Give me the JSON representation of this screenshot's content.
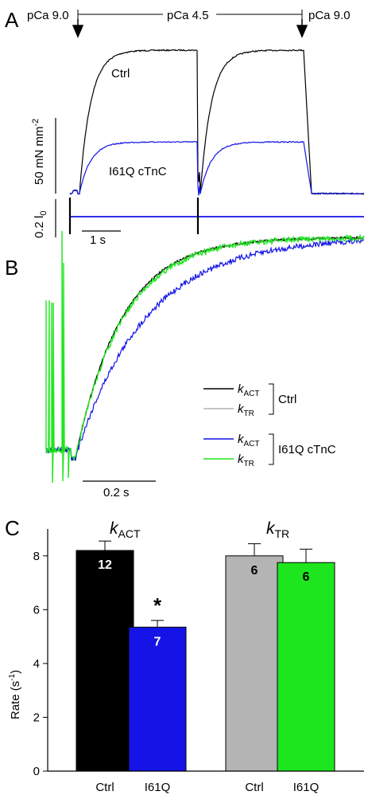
{
  "colors": {
    "ctrl_act": "#000000",
    "ctrl_tr": "#b4b4b4",
    "mut_act": "#1414e6",
    "mut_tr": "#1ee61e"
  },
  "panels": {
    "a": {
      "letter": "A",
      "start_label": "pCa 9.0",
      "mid_label": "pCa 4.5",
      "end_label": "pCa 9.0",
      "ctrl_label": "Ctrl",
      "mutant_label": "I61Q cTnC",
      "force_scale_label": "50 mN mm",
      "force_scale_exp": "-2",
      "length_scale_label": "0.2 l",
      "length_scale_sub": "0",
      "time_scale_label": "1 s"
    },
    "b": {
      "letter": "B",
      "time_scale_label": "0.2 s",
      "legend_group_ctrl": "Ctrl",
      "legend_group_mut": "I61Q cTnC"
    },
    "c": {
      "letter": "C"
    }
  },
  "chart_data": [
    {
      "type": "line",
      "panel": "A",
      "series": [
        {
          "name": "Ctrl",
          "level_max": 1.0,
          "steady_mutant_over_ctrl": 0.36
        },
        {
          "name": "I61Q cTnC",
          "level_max": 0.36
        }
      ],
      "annotations": [
        "pCa 9.0",
        "pCa 4.5",
        "pCa 9.0"
      ]
    },
    {
      "type": "line",
      "panel": "B",
      "legend": [
        {
          "main": "k",
          "sub": "ACT",
          "group": "Ctrl"
        },
        {
          "main": "k",
          "sub": "TR",
          "group": "Ctrl"
        },
        {
          "main": "k",
          "sub": "ACT",
          "group": "I61Q cTnC"
        },
        {
          "main": "k",
          "sub": "TR",
          "group": "I61Q cTnC"
        }
      ],
      "rate_constants_relative": [
        1.0,
        1.0,
        0.66,
        0.97
      ]
    },
    {
      "type": "bar",
      "panel": "C",
      "ylabel": "Rate (s",
      "ylabel_exp": "-1",
      "ylabel_close": ")",
      "ylim": [
        0,
        9
      ],
      "yticks": [
        0,
        2,
        4,
        6,
        8
      ],
      "groups": [
        {
          "title_main": "k",
          "title_sub": "ACT",
          "bars": [
            {
              "category": "Ctrl",
              "value": 8.2,
              "error": 0.35,
              "n": "12",
              "significant": false
            },
            {
              "category": "I61Q",
              "value": 5.35,
              "error": 0.25,
              "n": "7",
              "significant": true
            }
          ]
        },
        {
          "title_main": "k",
          "title_sub": "TR",
          "bars": [
            {
              "category": "Ctrl",
              "value": 8.0,
              "error": 0.45,
              "n": "6",
              "significant": false
            },
            {
              "category": "I61Q",
              "value": 7.75,
              "error": 0.5,
              "n": "6",
              "significant": false
            }
          ]
        }
      ],
      "significance_marker": "*"
    }
  ]
}
